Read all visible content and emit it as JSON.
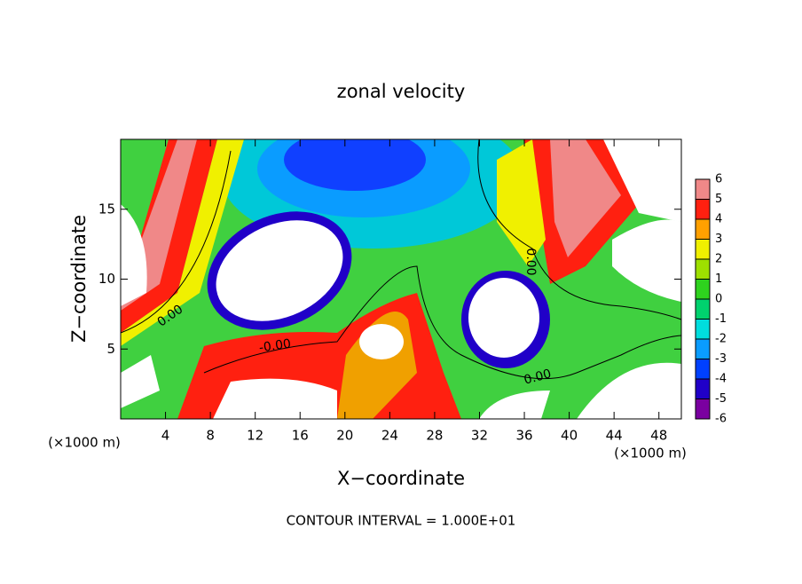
{
  "chart_data": {
    "type": "contour",
    "title": "zonal velocity",
    "x_label": "X−coordinate",
    "y_label": "Z−coordinate",
    "x_unit": "(×1000 m)",
    "y_unit": "(×1000 m)",
    "footer": "CONTOUR INTERVAL = 1.000E+01",
    "xlim": [
      0,
      50
    ],
    "xticks": [
      4,
      8,
      12,
      16,
      20,
      24,
      28,
      32,
      36,
      40,
      44,
      48
    ],
    "ylim": [
      0,
      20
    ],
    "yticks": [
      5,
      10,
      15
    ],
    "contour_labels": [
      "0.00",
      "-0.00",
      "0.00",
      "0.00"
    ],
    "colorbar": {
      "levels": [
        -6,
        -5,
        -4,
        -3,
        -2,
        -1,
        0,
        1,
        2,
        3,
        4,
        5,
        6
      ],
      "colors": [
        "#7a00a0",
        "#2000c8",
        "#0040ff",
        "#0a9cff",
        "#00dede",
        "#00d26e",
        "#2ed21e",
        "#9ee000",
        "#f0f000",
        "#ffa000",
        "#ff2010",
        "#f08888"
      ]
    }
  }
}
